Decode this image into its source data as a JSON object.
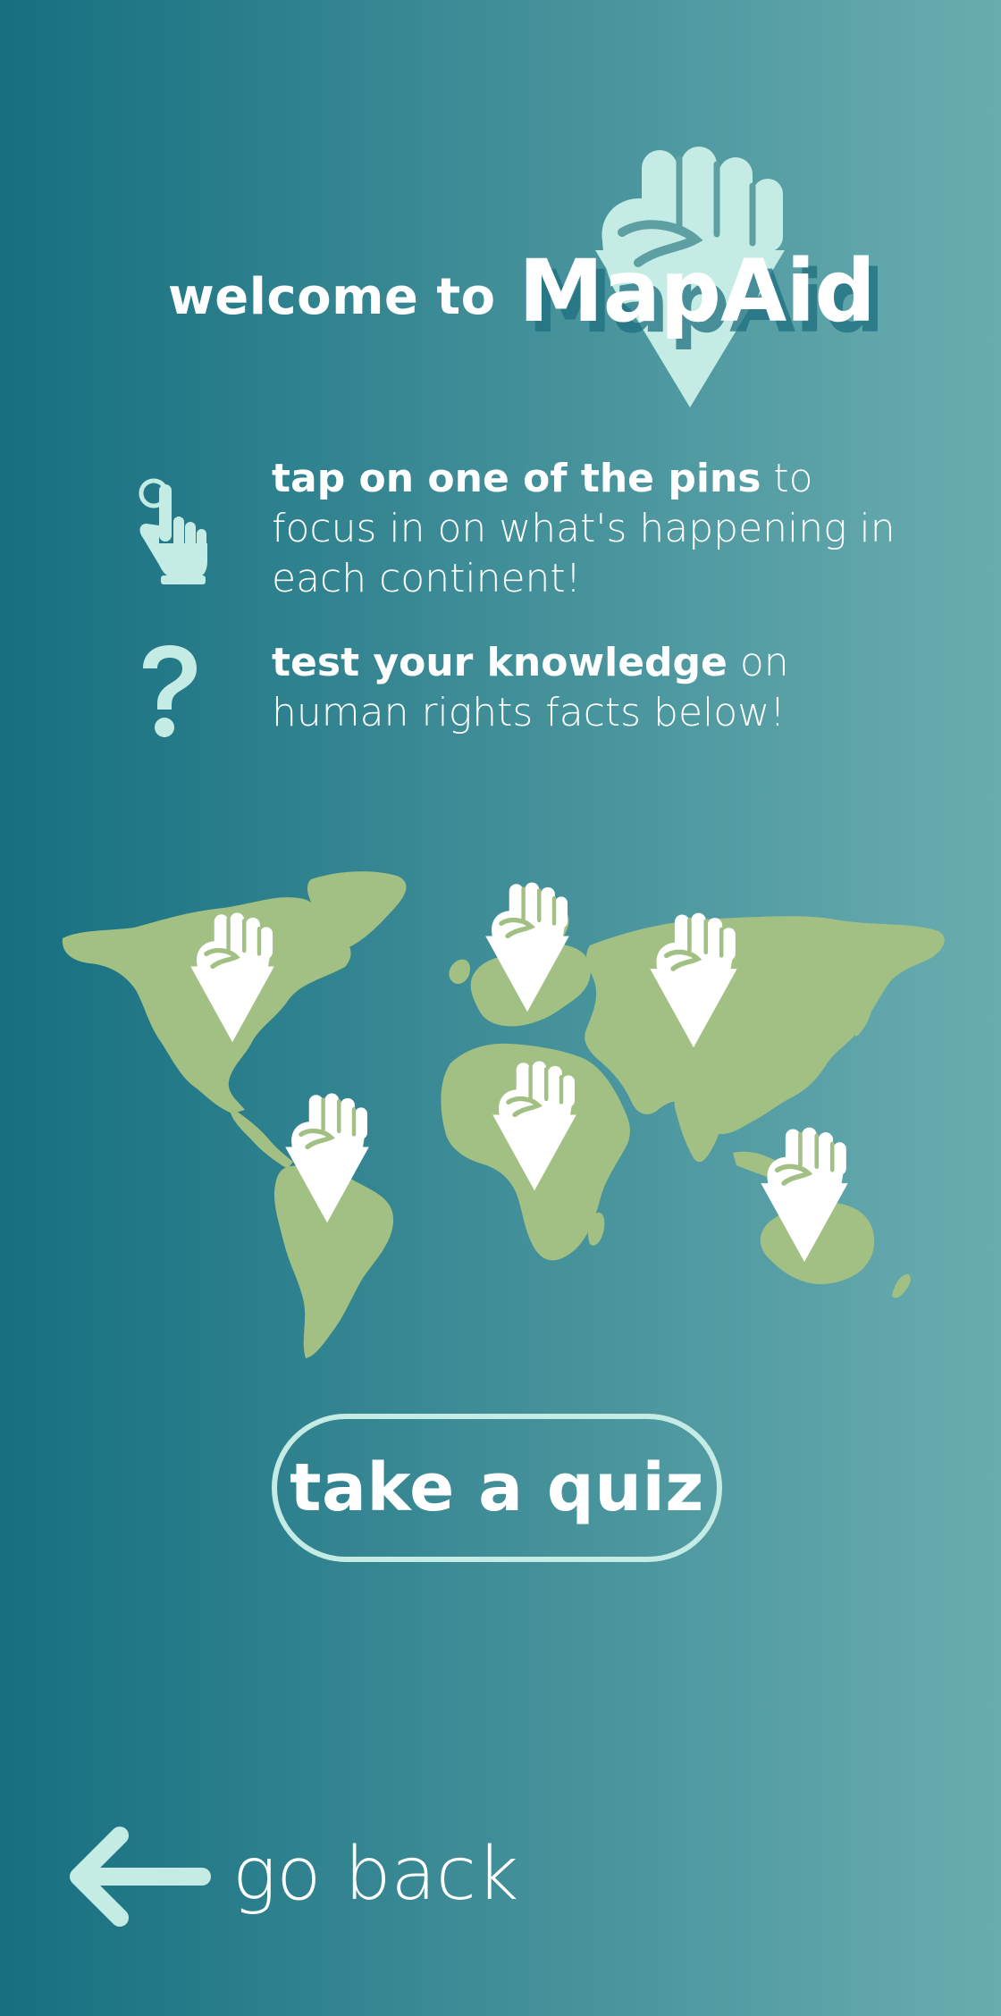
{
  "colors": {
    "bg_left": "#166f80",
    "bg_right": "#6aadb0",
    "accent_mint": "#c4ece4",
    "land_green": "#a2c083",
    "text_white": "#ffffff"
  },
  "header": {
    "welcome": "welcome to",
    "brand": "MapAid",
    "logo_icon": "raised-fist-pin-icon"
  },
  "instructions": [
    {
      "icon": "tap-hand-icon",
      "bold": "tap on one of the pins",
      "rest": " to focus in on what's happening in each continent!"
    },
    {
      "icon": "question-mark-icon",
      "bold": "test your knowledge",
      "rest": " on human rights facts below!"
    }
  ],
  "map": {
    "icon": "world-map",
    "pins": [
      {
        "region": "North America",
        "icon": "fist-pin-icon"
      },
      {
        "region": "Europe",
        "icon": "fist-pin-icon"
      },
      {
        "region": "Asia",
        "icon": "fist-pin-icon"
      },
      {
        "region": "South America",
        "icon": "fist-pin-icon"
      },
      {
        "region": "Africa",
        "icon": "fist-pin-icon"
      },
      {
        "region": "Oceania",
        "icon": "fist-pin-icon"
      }
    ]
  },
  "quiz_button": {
    "label": "take a quiz"
  },
  "back": {
    "label": "go back",
    "icon": "arrow-left-icon"
  }
}
